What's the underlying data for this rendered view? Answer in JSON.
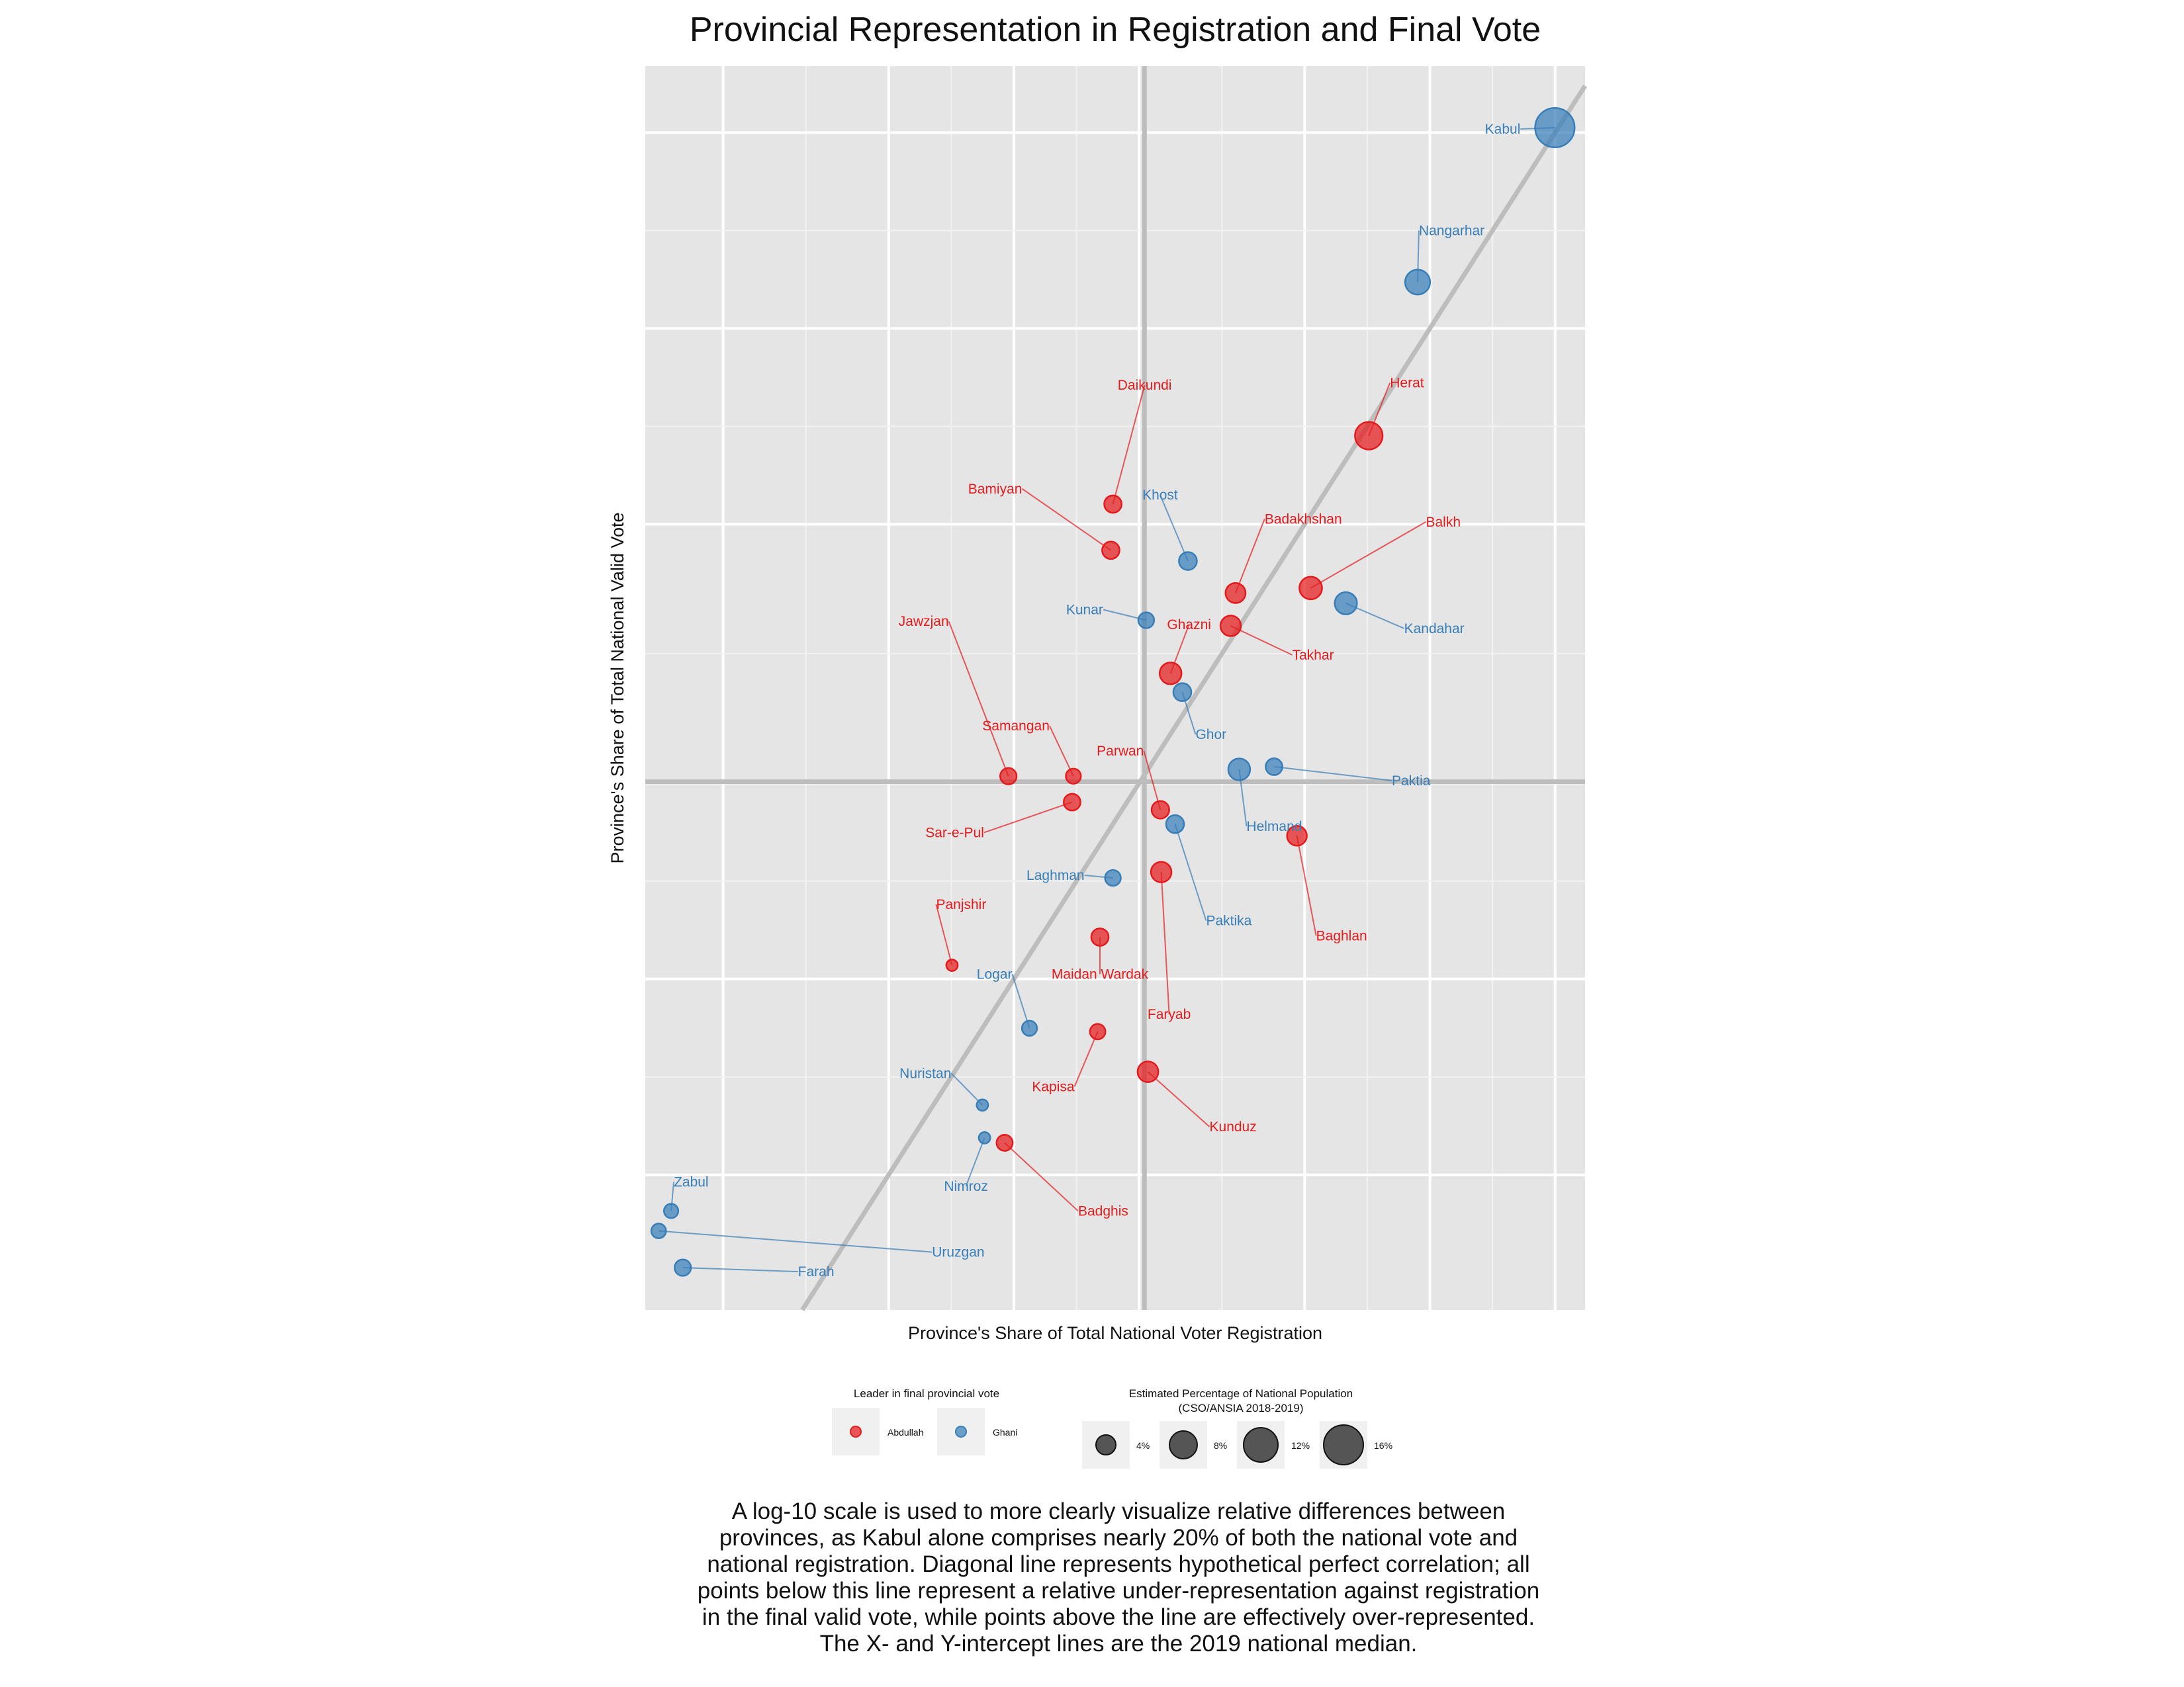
{
  "chart_data": {
    "type": "scatter",
    "title": "Provincial Representation in Registration and Final Vote",
    "xlabel": "Province's Share of Total National Voter Registration",
    "ylabel": "Province's Share of Total National Valid Vote",
    "x_scale": "log10",
    "y_scale": "log10",
    "xlim": [
      0.0013,
      0.236
    ],
    "ylim": [
      0.0031,
      0.253
    ],
    "grid": true,
    "reference_lines": {
      "diagonal": "perfect correlation (y = x)",
      "x_median": 0.0206,
      "y_median": 0.0201
    },
    "colors": {
      "Abdullah": "#e41a1c",
      "Ghani": "#377eb8"
    },
    "legend_color": {
      "title": "Leader in final provincial vote",
      "entries": [
        "Abdullah",
        "Ghani"
      ]
    },
    "legend_size": {
      "title": "Estimated Percentage of National Population",
      "subtitle": "(CSO/ANSIA 2018-2019)",
      "entries": [
        "4%",
        "8%",
        "12%",
        "16%"
      ]
    },
    "points": [
      {
        "name": "Kabul",
        "x": 0.1997,
        "y": 0.2035,
        "leader": "Ghani",
        "pop": 16.5
      },
      {
        "name": "Nangarhar",
        "x": 0.0934,
        "y": 0.1178,
        "leader": "Ghani",
        "pop": 5.4
      },
      {
        "name": "Herat",
        "x": 0.0713,
        "y": 0.0684,
        "leader": "Abdullah",
        "pop": 7.0
      },
      {
        "name": "Daikundi",
        "x": 0.0173,
        "y": 0.0537,
        "leader": "Abdullah",
        "pop": 2.0
      },
      {
        "name": "Bamiyan",
        "x": 0.0171,
        "y": 0.0456,
        "leader": "Abdullah",
        "pop": 2.0
      },
      {
        "name": "Khost",
        "x": 0.0262,
        "y": 0.0439,
        "leader": "Ghani",
        "pop": 2.2
      },
      {
        "name": "Badakhshan",
        "x": 0.0341,
        "y": 0.0392,
        "leader": "Abdullah",
        "pop": 3.0
      },
      {
        "name": "Balkh",
        "x": 0.0517,
        "y": 0.0399,
        "leader": "Abdullah",
        "pop": 4.2
      },
      {
        "name": "Kandahar",
        "x": 0.0628,
        "y": 0.0378,
        "leader": "Ghani",
        "pop": 4.0
      },
      {
        "name": "Kunar",
        "x": 0.0208,
        "y": 0.0356,
        "leader": "Ghani",
        "pop": 1.5
      },
      {
        "name": "Takhar",
        "x": 0.0332,
        "y": 0.0349,
        "leader": "Abdullah",
        "pop": 3.2
      },
      {
        "name": "Ghazni",
        "x": 0.0238,
        "y": 0.0295,
        "leader": "Abdullah",
        "pop": 3.8
      },
      {
        "name": "Ghor",
        "x": 0.0254,
        "y": 0.0276,
        "leader": "Ghani",
        "pop": 2.2
      },
      {
        "name": "Jawzjan",
        "x": 0.0097,
        "y": 0.0205,
        "leader": "Abdullah",
        "pop": 1.7
      },
      {
        "name": "Samangan",
        "x": 0.0139,
        "y": 0.0205,
        "leader": "Abdullah",
        "pop": 1.3
      },
      {
        "name": "Sar-e-Pul",
        "x": 0.0138,
        "y": 0.0187,
        "leader": "Abdullah",
        "pop": 1.8
      },
      {
        "name": "Parwan",
        "x": 0.0225,
        "y": 0.0182,
        "leader": "Abdullah",
        "pop": 2.1
      },
      {
        "name": "Helmand",
        "x": 0.0348,
        "y": 0.021,
        "leader": "Ghani",
        "pop": 3.8
      },
      {
        "name": "Paktia",
        "x": 0.0422,
        "y": 0.0212,
        "leader": "Ghani",
        "pop": 1.8
      },
      {
        "name": "Paktika",
        "x": 0.0244,
        "y": 0.0173,
        "leader": "Ghani",
        "pop": 2.2
      },
      {
        "name": "Baghlan",
        "x": 0.0479,
        "y": 0.0166,
        "leader": "Abdullah",
        "pop": 2.9
      },
      {
        "name": "Laghman",
        "x": 0.0173,
        "y": 0.0143,
        "leader": "Ghani",
        "pop": 1.5
      },
      {
        "name": "Faryab",
        "x": 0.0226,
        "y": 0.0146,
        "leader": "Abdullah",
        "pop": 3.2
      },
      {
        "name": "Panjshir",
        "x": 0.0071,
        "y": 0.0105,
        "leader": "Abdullah",
        "pop": 0.5
      },
      {
        "name": "Maidan Wardak",
        "x": 0.0161,
        "y": 0.0116,
        "leader": "Abdullah",
        "pop": 2.0
      },
      {
        "name": "Logar",
        "x": 0.0109,
        "y": 0.0084,
        "leader": "Ghani",
        "pop": 1.3
      },
      {
        "name": "Kapisa",
        "x": 0.0159,
        "y": 0.0083,
        "leader": "Abdullah",
        "pop": 1.4
      },
      {
        "name": "Kunduz",
        "x": 0.021,
        "y": 0.0072,
        "leader": "Abdullah",
        "pop": 3.3
      },
      {
        "name": "Nuristan",
        "x": 0.0084,
        "y": 0.0064,
        "leader": "Ghani",
        "pop": 0.5
      },
      {
        "name": "Nimroz",
        "x": 0.0085,
        "y": 0.0057,
        "leader": "Ghani",
        "pop": 0.5
      },
      {
        "name": "Badghis",
        "x": 0.0095,
        "y": 0.0056,
        "leader": "Abdullah",
        "pop": 1.6
      },
      {
        "name": "Zabul",
        "x": 0.0015,
        "y": 0.0044,
        "leader": "Ghani",
        "pop": 1.1
      },
      {
        "name": "Uruzgan",
        "x": 0.0014,
        "y": 0.0041,
        "leader": "Ghani",
        "pop": 1.2
      },
      {
        "name": "Farah",
        "x": 0.0016,
        "y": 0.0036,
        "leader": "Ghani",
        "pop": 1.7
      }
    ]
  },
  "caption": "A log-10 scale is used to more clearly visualize relative differences between provinces, as Kabul alone comprises nearly 20% of both the national vote and national registration. Diagonal line represents hypothetical perfect correlation; all points below this line represent a relative under-representation against registration in the final valid vote, while points above the line are effectively over-represented. The X- and Y-intercept lines are the 2019 national median."
}
